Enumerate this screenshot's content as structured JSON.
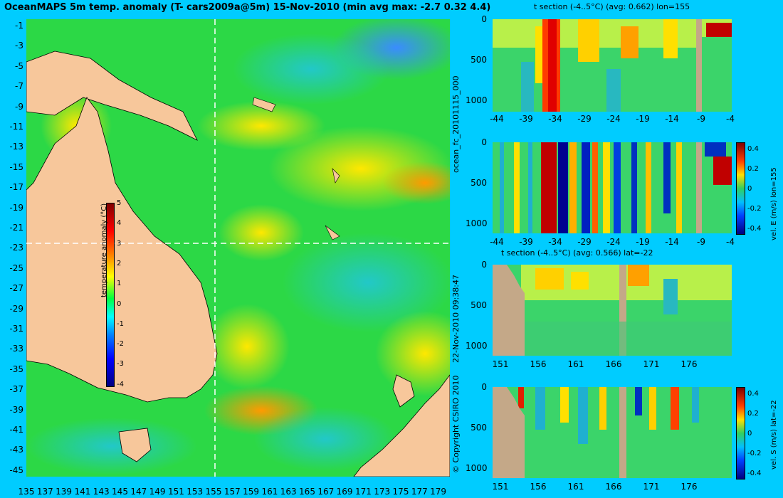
{
  "title": "OceanMAPS 5m temp. anomaly (T- cars2009a@5m) 15-Nov-2010 (min avg max: -2.7 0.32 4.4)",
  "map": {
    "lat_labels": [
      "-1",
      "-3",
      "-5",
      "-7",
      "-9",
      "-11",
      "-13",
      "-15",
      "-17",
      "-19",
      "-21",
      "-23",
      "-25",
      "-27",
      "-29",
      "-31",
      "-33",
      "-35",
      "-37",
      "-39",
      "-41",
      "-43",
      "-45"
    ],
    "lon_labels": [
      "135",
      "137",
      "139",
      "141",
      "143",
      "145",
      "147",
      "149",
      "151",
      "153",
      "155",
      "157",
      "159",
      "161",
      "163",
      "165",
      "167",
      "169",
      "171",
      "173",
      "175",
      "177",
      "179"
    ],
    "section_lon": 155,
    "section_lat": -22,
    "land_color": "#f7c79b"
  },
  "colorbar": {
    "title": "temperature anomaly (°C)",
    "ticks": [
      "5",
      "4",
      "3",
      "2",
      "1",
      "0",
      "-1",
      "-2",
      "-3",
      "-4"
    ]
  },
  "side_text": {
    "run": "ocean_fc_20101115_000",
    "stamp": "22-Nov-2010 09:38:47",
    "copyright": "© Copyright CSIRO 2010"
  },
  "panels": [
    {
      "title": "t section (-4..5°C) (avg: 0.662) lon=155",
      "yticks": [
        "0",
        "500",
        "1000"
      ],
      "xticks": [
        "-44",
        "-39",
        "-34",
        "-29",
        "-24",
        "-19",
        "-14",
        "-9",
        "-4"
      ]
    },
    {
      "title": "",
      "yticks": [
        "0",
        "500",
        "1000"
      ],
      "xticks": [
        "-44",
        "-39",
        "-34",
        "-29",
        "-24",
        "-19",
        "-14",
        "-9",
        "-4"
      ],
      "cb_title": "vel. E (m/s) lon=155",
      "cb_ticks": [
        "0.4",
        "0.2",
        "0",
        "-0.2",
        "-0.4"
      ]
    },
    {
      "title": "t section (-4..5°C) (avg: 0.566) lat=-22",
      "yticks": [
        "0",
        "500",
        "1000"
      ],
      "xticks": [
        "151",
        "156",
        "161",
        "166",
        "171",
        "176"
      ]
    },
    {
      "title": "",
      "yticks": [
        "0",
        "500",
        "1000"
      ],
      "xticks": [
        "151",
        "156",
        "161",
        "166",
        "171",
        "176"
      ],
      "cb_title": "vel. S (m/s) lat=-22",
      "cb_ticks": [
        "0.4",
        "0.2",
        "0",
        "-0.2",
        "-0.4"
      ]
    }
  ]
}
